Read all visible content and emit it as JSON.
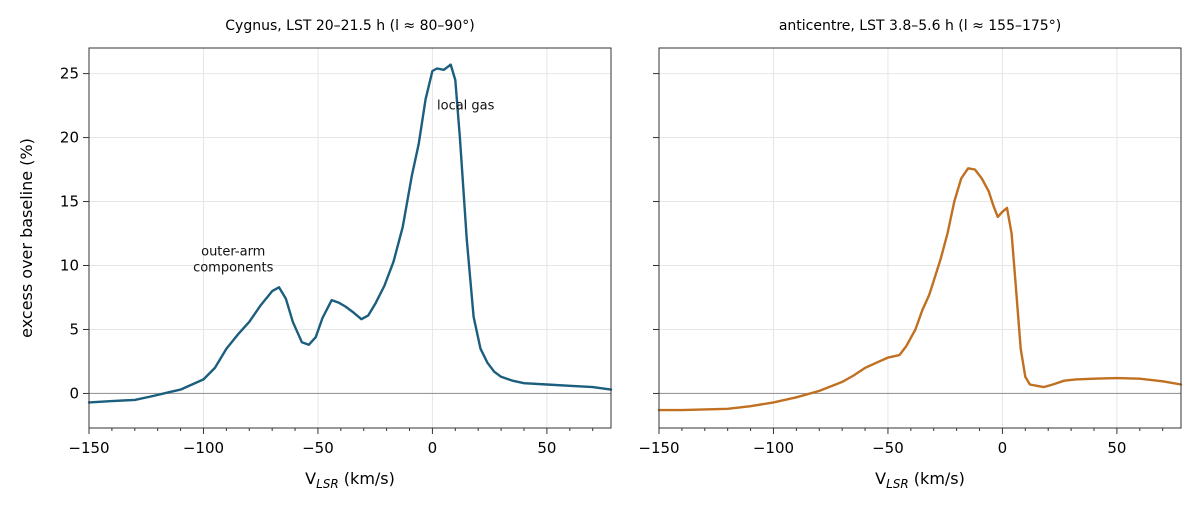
{
  "chart_data": [
    {
      "type": "line",
      "title": "Cygnus, LST 20–21.5 h  (l ≈ 80–90°)",
      "xlabel_base": "V",
      "xlabel_sub": "LSR",
      "xlabel_suffix": " (km/s)",
      "ylabel": "excess over baseline (%)",
      "xlim": [
        -150,
        78
      ],
      "ylim": [
        -2.7,
        27
      ],
      "xticks": [
        -150,
        -100,
        -50,
        0,
        50
      ],
      "xtick_labels": [
        "−150",
        "−100",
        "−50",
        "0",
        "50"
      ],
      "yticks": [
        0,
        5,
        10,
        15,
        20,
        25
      ],
      "ytick_labels": [
        "0",
        "5",
        "10",
        "15",
        "20",
        "25"
      ],
      "grid": true,
      "zero_line": true,
      "color": "#1b5e7e",
      "annotations": [
        {
          "lines": [
            "outer-arm",
            "components"
          ],
          "x": -87,
          "y": 10.8,
          "anchor": "middle"
        },
        {
          "lines": [
            "local gas"
          ],
          "x": 2,
          "y": 22.2,
          "anchor": "start"
        }
      ],
      "series": [
        {
          "x": [
            -150,
            -140,
            -130,
            -122,
            -115,
            -110,
            -105,
            -100,
            -95,
            -90,
            -85,
            -80,
            -75,
            -70,
            -67,
            -64,
            -61,
            -57,
            -54,
            -51,
            -48,
            -44,
            -41,
            -38,
            -35,
            -31,
            -28,
            -25,
            -21,
            -17,
            -13,
            -9,
            -6,
            -3,
            0,
            2,
            5,
            8,
            10,
            12,
            15,
            18,
            21,
            24,
            27,
            30,
            35,
            40,
            50,
            60,
            70,
            78
          ],
          "y": [
            -0.7,
            -0.6,
            -0.5,
            -0.2,
            0.1,
            0.3,
            0.7,
            1.1,
            2.0,
            3.5,
            4.6,
            5.6,
            6.9,
            8.0,
            8.3,
            7.4,
            5.6,
            4.0,
            3.8,
            4.4,
            5.9,
            7.3,
            7.1,
            6.8,
            6.4,
            5.8,
            6.1,
            7.0,
            8.4,
            10.3,
            13.0,
            17.0,
            19.5,
            23.0,
            25.2,
            25.4,
            25.3,
            25.7,
            24.5,
            20.0,
            12.0,
            6.0,
            3.5,
            2.4,
            1.7,
            1.3,
            1.0,
            0.8,
            0.7,
            0.6,
            0.5,
            0.3
          ]
        }
      ]
    },
    {
      "type": "line",
      "title": "anticentre, LST 3.8–5.6 h  (l ≈ 155–175°)",
      "xlabel_base": "V",
      "xlabel_sub": "LSR",
      "xlabel_suffix": " (km/s)",
      "ylabel": "",
      "xlim": [
        -150,
        78
      ],
      "ylim": [
        -2.7,
        27
      ],
      "xticks": [
        -150,
        -100,
        -50,
        0,
        50
      ],
      "xtick_labels": [
        "−150",
        "−100",
        "−50",
        "0",
        "50"
      ],
      "yticks": [
        0,
        5,
        10,
        15,
        20,
        25
      ],
      "ytick_labels": [],
      "grid": true,
      "zero_line": true,
      "color": "#c07020",
      "annotations": [],
      "series": [
        {
          "x": [
            -150,
            -140,
            -130,
            -120,
            -110,
            -100,
            -90,
            -80,
            -70,
            -65,
            -60,
            -55,
            -50,
            -45,
            -42,
            -38,
            -35,
            -32,
            -30,
            -27,
            -24,
            -21,
            -18,
            -15,
            -12,
            -9,
            -6,
            -4,
            -2,
            0,
            2,
            4,
            6,
            8,
            10,
            12,
            15,
            18,
            22,
            27,
            32,
            40,
            50,
            60,
            70,
            78
          ],
          "y": [
            -1.3,
            -1.3,
            -1.25,
            -1.2,
            -1.0,
            -0.7,
            -0.3,
            0.2,
            0.9,
            1.4,
            2.0,
            2.4,
            2.8,
            3.0,
            3.7,
            5.0,
            6.5,
            7.7,
            8.8,
            10.5,
            12.5,
            15.0,
            16.8,
            17.6,
            17.5,
            16.8,
            15.8,
            14.7,
            13.8,
            14.2,
            14.5,
            12.5,
            8.0,
            3.5,
            1.3,
            0.7,
            0.6,
            0.5,
            0.7,
            1.0,
            1.1,
            1.15,
            1.2,
            1.15,
            0.95,
            0.7
          ]
        }
      ]
    }
  ]
}
